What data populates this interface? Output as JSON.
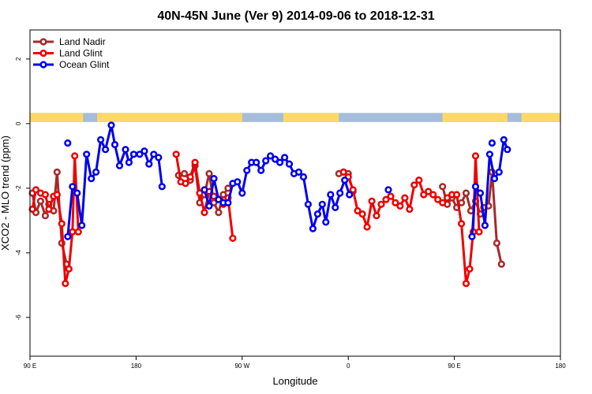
{
  "chart_data": {
    "type": "line",
    "title": "40N-45N June (Ver 9)   2014-09-06 to 2018-12-31",
    "xlabel": "Longitude",
    "ylabel": "XCO2 - MLO trend (ppm)",
    "x_ticks": [
      {
        "value": 90,
        "label": "90 E"
      },
      {
        "value": 180,
        "label": "180"
      },
      {
        "value": 270,
        "label": "90 W"
      },
      {
        "value": 360,
        "label": "0"
      },
      {
        "value": 450,
        "label": "90 E"
      },
      {
        "value": 540,
        "label": "180"
      }
    ],
    "y_ticks": [
      {
        "value": 2,
        "label": "2"
      },
      {
        "value": 0,
        "label": "0"
      },
      {
        "value": -2,
        "label": "-2"
      },
      {
        "value": -4,
        "label": "-4"
      },
      {
        "value": -6,
        "label": "-6"
      }
    ],
    "xlim": [
      90,
      540
    ],
    "ylim": [
      -7.2,
      2.9
    ],
    "grid": false,
    "legend_position": "top-left",
    "land_ocean_strip": {
      "y_range": [
        0.05,
        0.33
      ],
      "land_color": "#ffd966",
      "ocean_color": "#a6bddb",
      "land_lon_ranges": [
        [
          90,
          135
        ],
        [
          147,
          270
        ],
        [
          305,
          352
        ],
        [
          440,
          495
        ],
        [
          507,
          540
        ]
      ]
    },
    "series": [
      {
        "name": "Land Nadir",
        "color": "#a52a2a",
        "points": [
          [
            92,
            -2.15
          ],
          [
            95,
            -2.75
          ],
          [
            99,
            -2.4
          ],
          [
            103,
            -2.85
          ],
          [
            106,
            -2.5
          ],
          [
            110,
            -2.7
          ],
          [
            113,
            -1.5
          ],
          [
            117,
            -3.7
          ],
          [
            121,
            -4.35
          ],
          [
            190,
            null
          ],
          [
            216,
            -1.6
          ],
          [
            221,
            -1.55
          ],
          [
            226,
            -1.75
          ],
          [
            230,
            -1.3
          ],
          [
            234,
            -2.45
          ],
          [
            238,
            -2.2
          ],
          [
            242,
            -1.55
          ],
          [
            246,
            -2.45
          ],
          [
            250,
            -2.75
          ],
          [
            254,
            -2.2
          ],
          [
            258,
            -2.0
          ],
          [
            350,
            null
          ],
          [
            352,
            -1.55
          ],
          [
            356,
            -1.5
          ],
          [
            360,
            -1.55
          ],
          [
            364,
            -2.1
          ],
          [
            376,
            null
          ],
          [
            440,
            -1.95
          ],
          [
            444,
            -2.5
          ],
          [
            448,
            -2.3
          ],
          [
            452,
            -2.6
          ],
          [
            456,
            -2.45
          ],
          [
            460,
            -2.15
          ],
          [
            464,
            -2.7
          ],
          [
            468,
            -2.4
          ],
          [
            472,
            -2.8
          ],
          [
            475,
            -2.6
          ],
          [
            479,
            -2.55
          ],
          [
            482,
            -1.5
          ],
          [
            486,
            -3.7
          ],
          [
            490,
            -4.35
          ]
        ]
      },
      {
        "name": "Land Glint",
        "color": "#ee0000",
        "points": [
          [
            92,
            -2.65
          ],
          [
            95,
            -2.05
          ],
          [
            99,
            -2.15
          ],
          [
            103,
            -2.2
          ],
          [
            106,
            -2.65
          ],
          [
            110,
            -2.25
          ],
          [
            113,
            -2.2
          ],
          [
            117,
            -3.1
          ],
          [
            120,
            -4.95
          ],
          [
            123,
            -4.5
          ],
          [
            126,
            -3.35
          ],
          [
            128,
            -1.0
          ],
          [
            131,
            -3.35
          ],
          [
            190,
            null
          ],
          [
            214,
            -0.95
          ],
          [
            218,
            -1.8
          ],
          [
            222,
            -1.85
          ],
          [
            226,
            -1.65
          ],
          [
            230,
            -1.2
          ],
          [
            234,
            -2.15
          ],
          [
            238,
            -2.75
          ],
          [
            242,
            -2.1
          ],
          [
            246,
            -2.25
          ],
          [
            250,
            -2.35
          ],
          [
            254,
            -2.5
          ],
          [
            258,
            -2.3
          ],
          [
            262,
            -3.55
          ],
          [
            350,
            null
          ],
          [
            356,
            -1.5
          ],
          [
            360,
            -1.65
          ],
          [
            364,
            -2.05
          ],
          [
            368,
            -2.7
          ],
          [
            372,
            -2.8
          ],
          [
            376,
            -3.2
          ],
          [
            380,
            -2.4
          ],
          [
            384,
            -2.85
          ],
          [
            388,
            -2.5
          ],
          [
            392,
            -2.35
          ],
          [
            396,
            -2.25
          ],
          [
            400,
            -2.45
          ],
          [
            404,
            -2.55
          ],
          [
            408,
            -2.3
          ],
          [
            412,
            -2.65
          ],
          [
            416,
            -1.9
          ],
          [
            420,
            -1.75
          ],
          [
            424,
            -2.2
          ],
          [
            428,
            -2.1
          ],
          [
            432,
            -2.2
          ],
          [
            436,
            -2.35
          ],
          [
            440,
            -2.45
          ],
          [
            444,
            -2.3
          ],
          [
            448,
            -2.2
          ],
          [
            452,
            -2.2
          ],
          [
            456,
            -3.1
          ],
          [
            460,
            -4.95
          ],
          [
            463,
            -4.5
          ],
          [
            466,
            -3.35
          ],
          [
            468,
            -1.0
          ],
          [
            471,
            -3.35
          ]
        ]
      },
      {
        "name": "Ocean Glint",
        "color": "#0000ee",
        "points": [
          [
            122,
            -3.5
          ],
          [
            126,
            -1.95
          ],
          [
            130,
            -2.15
          ],
          [
            134,
            -3.15
          ],
          [
            138,
            -0.95
          ],
          [
            142,
            -1.7
          ],
          [
            146,
            -1.5
          ],
          [
            150,
            -0.5
          ],
          [
            154,
            -0.8
          ],
          [
            159,
            -0.05
          ],
          [
            162,
            -0.65
          ],
          [
            166,
            -1.3
          ],
          [
            171,
            -0.8
          ],
          [
            174,
            -1.2
          ],
          [
            178,
            -0.95
          ],
          [
            183,
            -0.95
          ],
          [
            187,
            -0.85
          ],
          [
            191,
            -1.25
          ],
          [
            195,
            -0.95
          ],
          [
            199,
            -1.05
          ],
          [
            202,
            -1.95
          ],
          [
            234,
            null
          ],
          [
            238,
            -2.05
          ],
          [
            242,
            -2.55
          ],
          [
            246,
            -1.7
          ],
          [
            250,
            -2.35
          ],
          [
            254,
            -2.45
          ],
          [
            258,
            -2.45
          ],
          [
            262,
            -1.85
          ],
          [
            266,
            -1.8
          ],
          [
            270,
            -2.15
          ],
          [
            274,
            -1.45
          ],
          [
            278,
            -1.2
          ],
          [
            282,
            -1.2
          ],
          [
            286,
            -1.45
          ],
          [
            290,
            -1.15
          ],
          [
            294,
            -1.0
          ],
          [
            298,
            -1.1
          ],
          [
            302,
            -1.2
          ],
          [
            306,
            -1.05
          ],
          [
            310,
            -1.25
          ],
          [
            314,
            -1.55
          ],
          [
            318,
            -1.5
          ],
          [
            322,
            -1.65
          ],
          [
            326,
            -2.5
          ],
          [
            330,
            -3.25
          ],
          [
            334,
            -2.8
          ],
          [
            338,
            -2.5
          ],
          [
            341,
            -3.05
          ],
          [
            345,
            -2.2
          ],
          [
            349,
            -2.6
          ],
          [
            353,
            -2.15
          ],
          [
            357,
            -1.75
          ],
          [
            361,
            -2.2
          ],
          [
            390,
            null
          ],
          [
            394,
            -2.05
          ],
          [
            426,
            null
          ],
          [
            465,
            -3.5
          ],
          [
            468,
            -1.95
          ],
          [
            472,
            -2.15
          ],
          [
            476,
            -3.15
          ],
          [
            480,
            -0.95
          ],
          [
            484,
            -1.7
          ],
          [
            488,
            -1.5
          ],
          [
            492,
            -0.5
          ],
          [
            495,
            -0.8
          ]
        ]
      },
      {
        "name": "",
        "color": "#0000ee",
        "isolated": true,
        "points": [
          [
            122,
            -0.6
          ],
          [
            482,
            -0.6
          ]
        ]
      }
    ]
  }
}
